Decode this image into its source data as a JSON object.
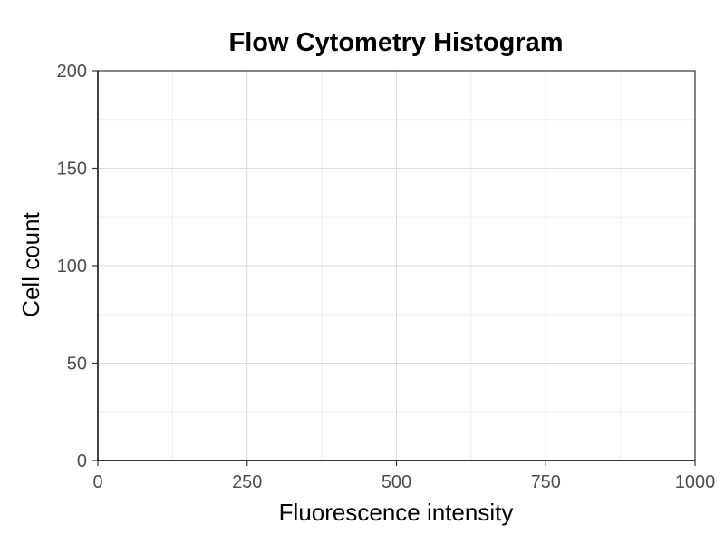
{
  "chart_data": {
    "type": "bar",
    "title": "Flow Cytometry Histogram",
    "xlabel": "Fluorescence intensity",
    "ylabel": "Cell count",
    "xlim": [
      0,
      1000
    ],
    "ylim": [
      0,
      200
    ],
    "x_ticks": [
      0,
      250,
      500,
      750,
      1000
    ],
    "y_ticks": [
      0,
      50,
      100,
      150,
      200
    ],
    "x_minor": [
      125,
      375,
      625,
      875
    ],
    "y_minor": [
      25,
      75,
      125,
      175
    ],
    "bins": [],
    "grid": true,
    "legend": "none"
  }
}
